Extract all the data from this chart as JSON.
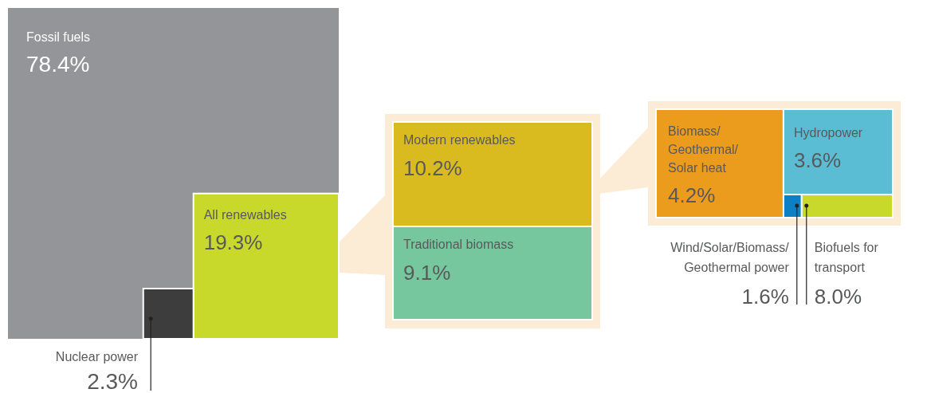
{
  "chart_data": {
    "type": "other",
    "categories": [
      "Fossil fuels",
      "Nuclear power",
      "All renewables",
      "Modern renewables",
      "Traditional biomass",
      "Biomass/\nGeothermal/\nSolar heat",
      "Hydropower",
      "Wind/Solar/Biomass/\nGeothermal power",
      "Biofuels for\ntransport"
    ],
    "values": [
      78.4,
      2.3,
      19.3,
      10.2,
      9.1,
      4.2,
      3.6,
      1.6,
      8.0
    ],
    "value_labels": [
      "78.4%",
      "2.3%",
      "19.3%",
      "10.2%",
      "9.1%",
      "4.2%",
      "3.6%",
      "1.6%",
      "8.0%"
    ],
    "colors": [
      "#939598",
      "#3d3d3d",
      "#c8d92b",
      "#d9bb20",
      "#76c79e",
      "#ec9c1c",
      "#5bbdd4",
      "#0c80c4",
      "#c8d92b"
    ]
  }
}
